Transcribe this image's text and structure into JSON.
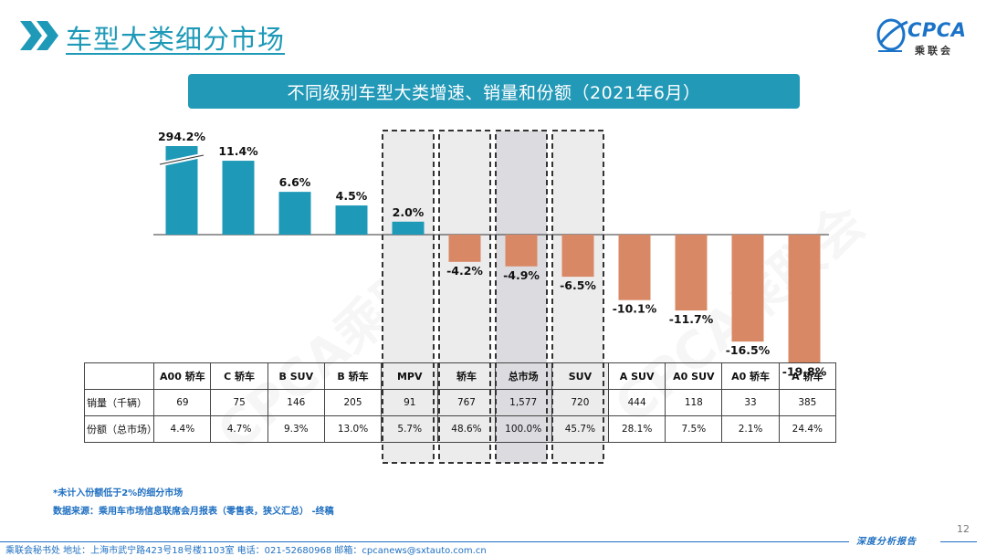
{
  "header": {
    "title": "车型大类细分市场",
    "logo_text": "CPCA",
    "logo_sub": "乘联会"
  },
  "banner": {
    "text": "不同级别车型大类增速、销量和份额（2021年6月）"
  },
  "watermark": {
    "text": "CPCA乘联会"
  },
  "chart_data": {
    "type": "bar",
    "categories": [
      "A00 轿车",
      "C 轿车",
      "B SUV",
      "B 轿车",
      "MPV",
      "轿车",
      "总市场",
      "SUV",
      "A SUV",
      "A0 SUV",
      "A0 轿车",
      "A 轿车"
    ],
    "values": [
      294.2,
      11.4,
      6.6,
      4.5,
      2.0,
      -4.2,
      -4.9,
      -6.5,
      -10.1,
      -11.7,
      -16.5,
      -19.8
    ],
    "value_labels": [
      "294.2%",
      "11.4%",
      "6.6%",
      "4.5%",
      "2.0%",
      "-4.2%",
      "-4.9%",
      "-6.5%",
      "-10.1%",
      "-11.7%",
      "-16.5%",
      "-19.8%"
    ],
    "axis_break_on": "A00 轿车",
    "highlighted_categories": [
      "MPV",
      "轿车",
      "总市场",
      "SUV"
    ],
    "colors": {
      "positive": "#1e9ab8",
      "negative": "#d98866",
      "highlight_bg": "#ececec",
      "total_bg": "#dcdce0"
    },
    "table": {
      "rows": [
        {
          "label": "销量（千辆）",
          "values": [
            "69",
            "75",
            "146",
            "205",
            "91",
            "767",
            "1,577",
            "720",
            "444",
            "118",
            "33",
            "385"
          ]
        },
        {
          "label": "份额（总市场）",
          "values": [
            "4.4%",
            "4.7%",
            "9.3%",
            "13.0%",
            "5.7%",
            "48.6%",
            "100.0%",
            "45.7%",
            "28.1%",
            "7.5%",
            "2.1%",
            "24.4%"
          ]
        }
      ]
    }
  },
  "notes": {
    "line1": "*未计入份额低于2%的细分市场",
    "line2": "数据来源：乘用车市场信息联席会月报表（零售表，狭义汇总）  -终稿"
  },
  "footer": {
    "contact": "乘联会秘书处   地址：上海市武宁路423号18号楼1103室   电话：021-52680968   邮箱：cpcanews@sxtauto.com.cn",
    "report_label": "深度分析报告",
    "page_number": "12"
  }
}
